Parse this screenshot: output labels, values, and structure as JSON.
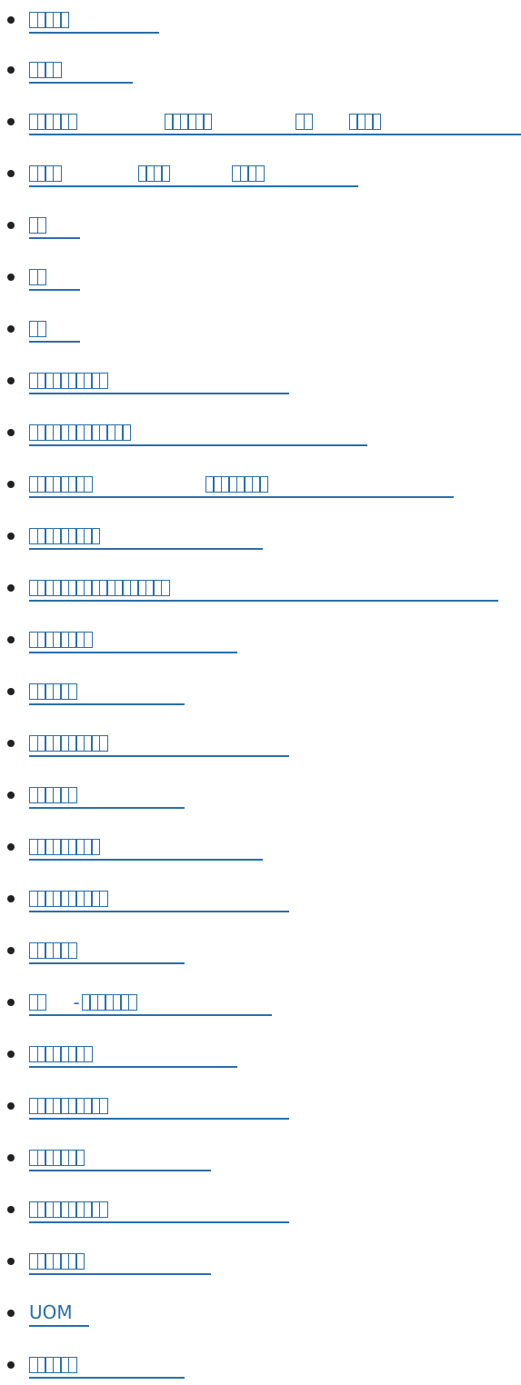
{
  "colors": {
    "link": "#2b6ea8",
    "bullet": "#222222",
    "background": "#ffffff"
  },
  "nav": {
    "items": [
      {
        "label": "□□□□□",
        "name": "nav-item-1"
      },
      {
        "label": "□□□□",
        "name": "nav-item-2"
      },
      {
        "label": "□□□□□□ □□□□□□ □□ □□□□",
        "name": "nav-item-3"
      },
      {
        "label": "□□□□ □□□□ □□□□",
        "name": "nav-item-4"
      },
      {
        "label": "□□",
        "name": "nav-item-5"
      },
      {
        "label": "□□",
        "name": "nav-item-6"
      },
      {
        "label": "□□",
        "name": "nav-item-7"
      },
      {
        "label": "□□□□□□□□□□",
        "name": "nav-item-8"
      },
      {
        "label": "□□□□□□□□□□□□□",
        "name": "nav-item-9"
      },
      {
        "label": "□□□□□□□□ □□□□□□□□",
        "name": "nav-item-10"
      },
      {
        "label": "□□□□□□□□□",
        "name": "nav-item-11"
      },
      {
        "label": "□□□□□□□□□□□□□□□□□□",
        "name": "nav-item-12"
      },
      {
        "label": "□□□□□□□□",
        "name": "nav-item-13"
      },
      {
        "label": "□□□□□□",
        "name": "nav-item-14"
      },
      {
        "label": "□□□□□□□□□□",
        "name": "nav-item-15"
      },
      {
        "label": "□□□□□□",
        "name": "nav-item-16"
      },
      {
        "label": "□□□□□□□□□",
        "name": "nav-item-17"
      },
      {
        "label": "□□□□□□□□□□",
        "name": "nav-item-18"
      },
      {
        "label": "□□□□□□",
        "name": "nav-item-19"
      },
      {
        "label": "□□ -□□□□□□□",
        "name": "nav-item-20"
      },
      {
        "label": "□□□□□□□□",
        "name": "nav-item-21"
      },
      {
        "label": "□□□□□□□□□□",
        "name": "nav-item-22"
      },
      {
        "label": "□□□□□□□",
        "name": "nav-item-23"
      },
      {
        "label": "□□□□□□□□□□",
        "name": "nav-item-24"
      },
      {
        "label": "□□□□□□□",
        "name": "nav-item-25"
      },
      {
        "label": "UOM",
        "name": "nav-item-uom"
      },
      {
        "label": "□□□□□□",
        "name": "nav-item-27"
      }
    ]
  }
}
